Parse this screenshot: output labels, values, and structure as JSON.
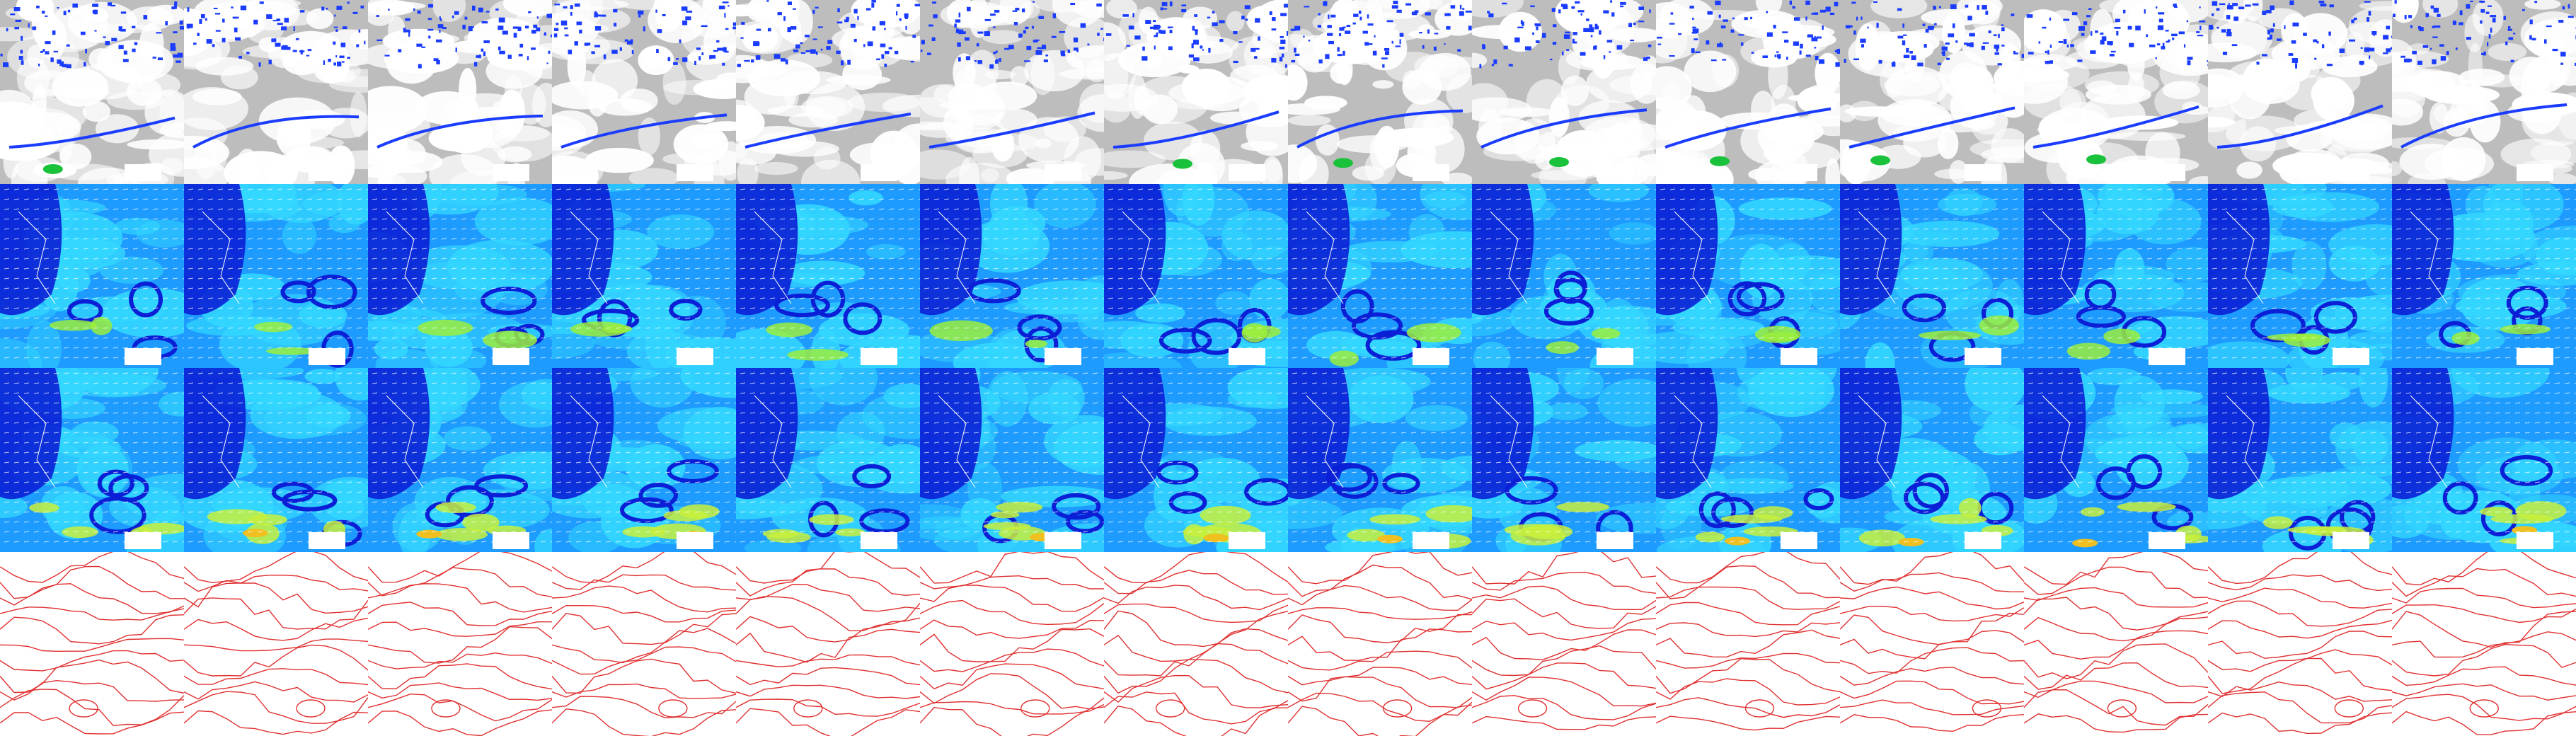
{
  "figure": {
    "columns": 14,
    "rows": [
      {
        "id": "satellite-cloud",
        "kind": "cloud",
        "colors": {
          "background": "#bdbdbd",
          "cloud": "#ffffff",
          "storm": "#1a3cff",
          "core": "#19c23a",
          "peak": "#f0e020"
        }
      },
      {
        "id": "wind-low",
        "kind": "wind",
        "colors": {
          "low": "#0a1fd6",
          "mid": "#1e9bff",
          "high": "#33d7ff",
          "peak": "#9bef3c",
          "arrow": "#ffffff",
          "border": "#ffffff"
        }
      },
      {
        "id": "wind-high",
        "kind": "wind",
        "colors": {
          "low": "#0a1fd6",
          "mid": "#1e9bff",
          "high": "#33d7ff",
          "peak": "#c8f03c",
          "extreme": "#f0c020",
          "arrow": "#ffffff",
          "border": "#ffffff"
        }
      },
      {
        "id": "pressure-isobars",
        "kind": "isobar",
        "colors": {
          "line": "#e03030",
          "background": "#ffffff"
        }
      }
    ]
  }
}
